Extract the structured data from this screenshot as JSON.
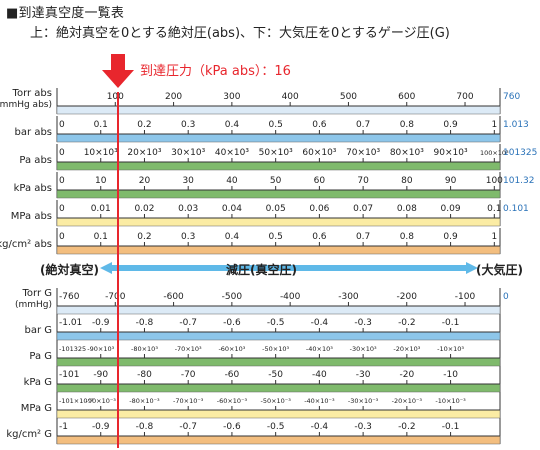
{
  "header": {
    "title": "■到達真空度一覧表",
    "subtitle": "上：絶対真空を0とする絶対圧(abs)、下：大気圧を0とするゲージ圧(G)"
  },
  "marker": {
    "label": "到達圧力（kPa abs）：16",
    "color": "#e8262d"
  },
  "band": {
    "left_label": "(絶対真空)",
    "center_label": "減圧(真空圧)",
    "right_label": "(大気圧)",
    "color": "#5fb9e8"
  },
  "colors": {
    "blue": "#8dc6ea",
    "green": "#7fba6c",
    "yellow": "#fbeca4",
    "orange": "#f3be7f",
    "pale_blue": "#dceaf6",
    "right_value": "#2a72b8"
  },
  "abs_scales": [
    {
      "unit": "Torr abs",
      "unit2": "(mmHg abs)",
      "left": "",
      "right": "760",
      "color": "pale_blue",
      "ticks": [
        "100",
        "200",
        "300",
        "400",
        "500",
        "600",
        "700"
      ]
    },
    {
      "unit": "bar abs",
      "left": "0",
      "right": "1.013",
      "color": "blue",
      "ticks": [
        "0.1",
        "0.2",
        "0.3",
        "0.4",
        "0.5",
        "0.6",
        "0.7",
        "0.8",
        "0.9",
        "1"
      ]
    },
    {
      "unit": "Pa abs",
      "left": "0",
      "right": "101325",
      "color": "green",
      "ticks": [
        "10×10³",
        "20×10³",
        "30×10³",
        "40×10³",
        "50×10³",
        "60×10³",
        "70×10³",
        "80×10³",
        "90×10³",
        "100×10³"
      ]
    },
    {
      "unit": "kPa abs",
      "left": "0",
      "right": "101.32",
      "color": "green",
      "ticks": [
        "10",
        "20",
        "30",
        "40",
        "50",
        "60",
        "70",
        "80",
        "90",
        "100"
      ]
    },
    {
      "unit": "MPa abs",
      "left": "0",
      "right": "0.101",
      "color": "yellow",
      "ticks": [
        "0.01",
        "0.02",
        "0.03",
        "0.04",
        "0.05",
        "0.06",
        "0.07",
        "0.08",
        "0.09",
        "0.1"
      ]
    },
    {
      "unit": "kg/cm² abs",
      "left": "0",
      "right": "",
      "color": "orange",
      "ticks": [
        "0.1",
        "0.2",
        "0.3",
        "0.4",
        "0.5",
        "0.6",
        "0.7",
        "0.8",
        "0.9",
        "1"
      ]
    }
  ],
  "gauge_scales": [
    {
      "unit": "Torr G",
      "unit2": "(mmHg)",
      "left": "-760",
      "right": "0",
      "color": "pale_blue",
      "ticks": [
        "-700",
        "-600",
        "-500",
        "-400",
        "-300",
        "-200",
        "-100"
      ]
    },
    {
      "unit": "bar G",
      "left": "-1.01",
      "right": "",
      "color": "blue",
      "ticks": [
        "-0.9",
        "-0.8",
        "-0.7",
        "-0.6",
        "-0.5",
        "-0.4",
        "-0.3",
        "-0.2",
        "-0.1"
      ]
    },
    {
      "unit": "Pa G",
      "left": "-101325",
      "right": "",
      "color": "green",
      "ticks": [
        "-90×10³",
        "-80×10³",
        "-70×10³",
        "-60×10³",
        "-50×10³",
        "-40×10³",
        "-30×10³",
        "-20×10³",
        "-10×10³"
      ]
    },
    {
      "unit": "kPa G",
      "left": "-101",
      "right": "",
      "color": "green",
      "ticks": [
        "-90",
        "-80",
        "-70",
        "-60",
        "-50",
        "-40",
        "-30",
        "-20",
        "-10"
      ]
    },
    {
      "unit": "MPa G",
      "left": "-101×10⁻³",
      "right": "",
      "color": "yellow",
      "ticks": [
        "-90×10⁻³",
        "-80×10⁻³",
        "-70×10⁻³",
        "-60×10⁻³",
        "-50×10⁻³",
        "-40×10⁻³",
        "-30×10⁻³",
        "-20×10⁻³",
        "-10×10⁻³"
      ]
    },
    {
      "unit": "kg/cm² G",
      "left": "-1",
      "right": "",
      "color": "orange",
      "ticks": [
        "-0.9",
        "-0.8",
        "-0.7",
        "-0.6",
        "-0.5",
        "-0.4",
        "-0.3",
        "-0.2",
        "-0.1"
      ]
    }
  ]
}
